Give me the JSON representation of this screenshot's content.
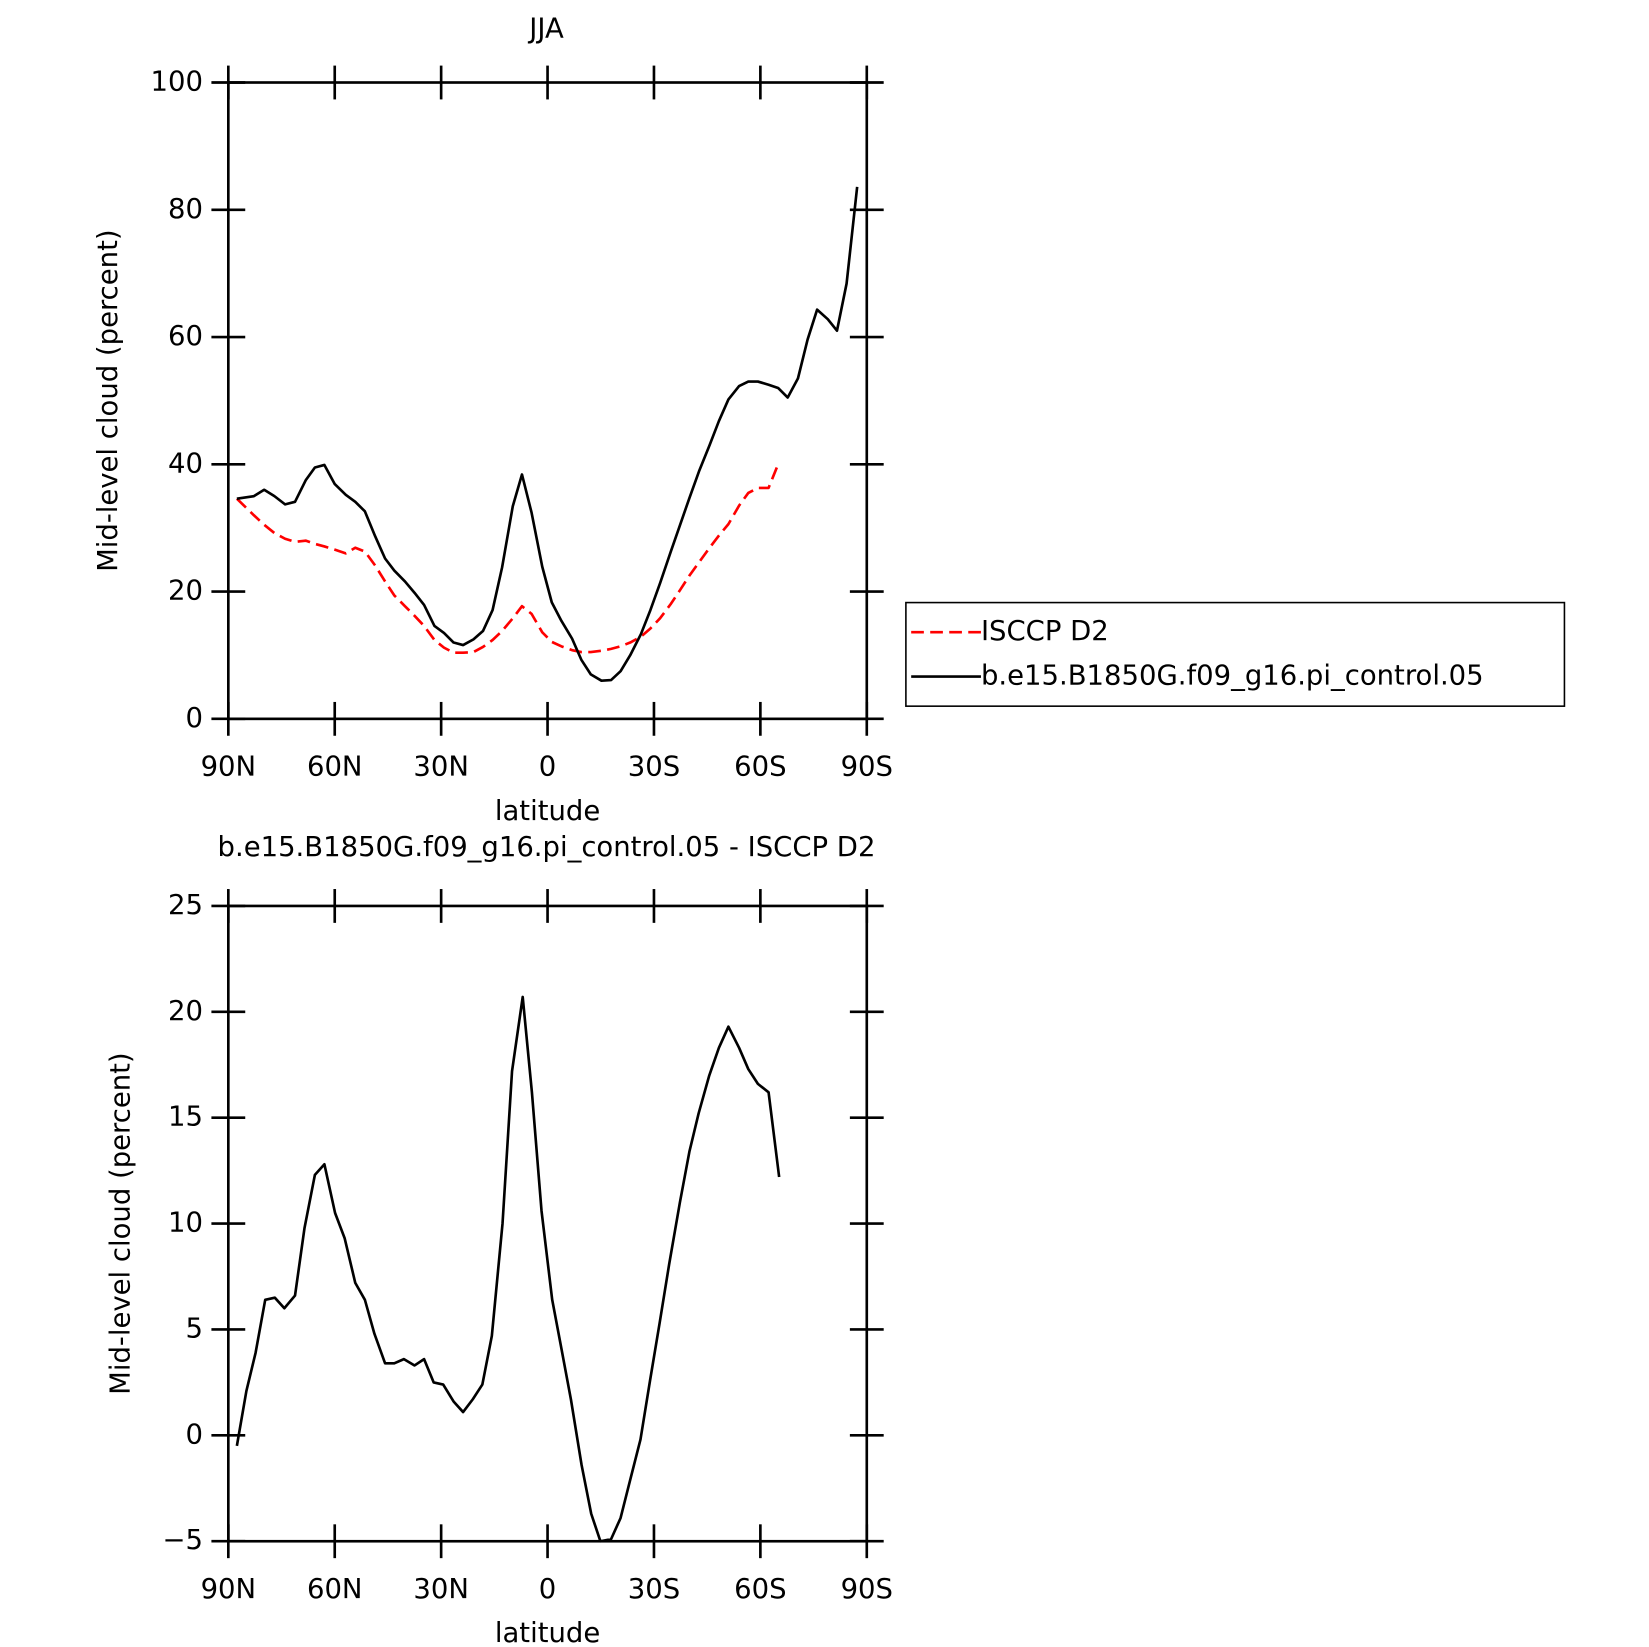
{
  "chart_data": [
    {
      "type": "line",
      "title": "JJA",
      "ylabel": "Mid-level cloud (percent)",
      "xlabel": "latitude",
      "xlim": [
        90,
        -90
      ],
      "xticks": [
        {
          "value": 90,
          "label": "90N"
        },
        {
          "value": 60,
          "label": "60N"
        },
        {
          "value": 30,
          "label": "30N"
        },
        0,
        {
          "value": -30,
          "label": "30S"
        },
        {
          "value": -60,
          "label": "60S"
        },
        {
          "value": -90,
          "label": "90S"
        }
      ],
      "ylim": [
        0,
        100
      ],
      "yticks": [
        0,
        20,
        40,
        60,
        80,
        100
      ],
      "x": [
        87.6,
        82.8,
        79.9,
        77,
        74,
        71.2,
        68.2,
        65.6,
        62.9,
        60,
        56.9,
        54.2,
        51.5,
        48.6,
        45.8,
        43.2,
        40.2,
        37.5,
        34.8,
        31.9,
        29.2,
        26.5,
        23.8,
        20.9,
        18.2,
        15.5,
        12.8,
        9.8,
        7.2,
        4.5,
        1.5,
        -1.2,
        -3.9,
        -6.9,
        -9.5,
        -12.2,
        -15.2,
        -17.9,
        -20.6,
        -23.3,
        -26.3,
        -29,
        -31.7,
        -34.7,
        -37.3,
        -40,
        -42.7,
        -45.7,
        -48.3,
        -51,
        -54,
        -56.6,
        -59.3,
        -62.3,
        -65,
        -67.7,
        -70.6,
        -73.3,
        -76,
        -79,
        -81.6,
        -84.3,
        -87.3
      ],
      "series": [
        {
          "name": "ISCCP D2",
          "color": "#ff0000",
          "dash": true,
          "values": [
            34.6,
            32,
            30.5,
            29.2,
            28.3,
            27.8,
            28.0,
            27.5,
            27.1,
            26.6,
            26.0,
            26.9,
            26.3,
            24.1,
            21.6,
            19.4,
            17.7,
            16.2,
            14.6,
            12.4,
            11.2,
            10.4,
            10.4,
            10.5,
            11.3,
            12.4,
            13.8,
            15.8,
            17.7,
            16.5,
            13.6,
            12.1,
            11.4,
            10.8,
            10.5,
            10.5,
            10.7,
            11.0,
            11.4,
            12.0,
            12.9,
            14.2,
            15.8,
            18.0,
            20.2,
            22.5,
            24.6,
            26.9,
            28.8,
            30.6,
            33.5,
            35.5,
            36.3,
            36.3,
            40.0,
            null,
            null,
            null,
            null,
            null,
            null,
            null,
            null
          ]
        },
        {
          "name": "b.e15.B1850G.f09_g16.pi_control.05",
          "color": "#000000",
          "dash": false,
          "values": [
            34.6,
            35.0,
            36.0,
            35.0,
            33.7,
            34.1,
            37.5,
            39.5,
            39.9,
            36.9,
            35.2,
            34.1,
            32.6,
            28.7,
            25.2,
            23.3,
            21.6,
            19.8,
            17.9,
            14.6,
            13.5,
            12.0,
            11.6,
            12.5,
            13.8,
            17.1,
            23.8,
            33.4,
            38.4,
            32.4,
            23.9,
            18.3,
            15.4,
            12.6,
            9.3,
            7.0,
            6.0,
            6.1,
            7.5,
            10.0,
            13.3,
            17.1,
            21.3,
            26.2,
            30.4,
            34.7,
            38.9,
            43.0,
            46.8,
            50.2,
            52.3,
            53.0,
            53.0,
            52.5,
            52.0,
            50.5,
            53.5,
            59.6,
            64.3,
            62.8,
            61.0,
            68.4,
            83.6
          ]
        }
      ]
    },
    {
      "type": "line",
      "title": "b.e15.B1850G.f09_g16.pi_control.05 - ISCCP D2",
      "ylabel": "Mid-level cloud (percent)",
      "xlabel": "latitude",
      "xlim": [
        90,
        -90
      ],
      "xticks": [
        {
          "value": 90,
          "label": "90N"
        },
        {
          "value": 60,
          "label": "60N"
        },
        {
          "value": 30,
          "label": "30N"
        },
        0,
        {
          "value": -30,
          "label": "30S"
        },
        {
          "value": -60,
          "label": "60S"
        },
        {
          "value": -90,
          "label": "90S"
        }
      ],
      "ylim": [
        -5,
        25
      ],
      "yticks": [
        {
          "value": -5,
          "label": "−5"
        },
        0,
        5,
        10,
        15,
        20,
        25
      ],
      "x": [
        87.6,
        84.9,
        82.3,
        79.6,
        76.9,
        74.2,
        71.2,
        68.5,
        65.6,
        62.9,
        59.9,
        57.2,
        54.2,
        51.5,
        48.8,
        45.8,
        43.2,
        40.5,
        37.5,
        34.8,
        32.1,
        29.4,
        26.5,
        23.8,
        21.1,
        18.4,
        15.7,
        12.7,
        10.0,
        7.0,
        4.4,
        1.7,
        -1.3,
        -3.9,
        -6.6,
        -9.6,
        -12.3,
        -14.9,
        -17.9,
        -20.6,
        -23.3,
        -26.2,
        -28.9,
        -31.6,
        -34.3,
        -37.3,
        -40.0,
        -42.6,
        -45.6,
        -48.3,
        -51.0,
        -54.0,
        -56.6,
        -59.3,
        -62.3,
        -65.3
      ],
      "series": [
        {
          "color": "#000000",
          "dash": false,
          "values": [
            -0.5,
            2.1,
            3.9,
            6.4,
            6.5,
            6.0,
            6.6,
            9.8,
            12.3,
            12.8,
            10.5,
            9.3,
            7.2,
            6.4,
            4.8,
            3.4,
            3.4,
            3.6,
            3.3,
            3.6,
            2.5,
            2.4,
            1.6,
            1.1,
            1.7,
            2.4,
            4.7,
            10.0,
            17.2,
            20.7,
            16.2,
            10.6,
            6.4,
            4.1,
            1.7,
            -1.4,
            -3.7,
            -5.0,
            -4.9,
            -3.9,
            -2.1,
            -0.2,
            2.6,
            5.3,
            8.1,
            11.0,
            13.4,
            15.2,
            17.0,
            18.3,
            19.3,
            18.3,
            17.3,
            16.6,
            16.2,
            12.2
          ]
        }
      ]
    }
  ]
}
